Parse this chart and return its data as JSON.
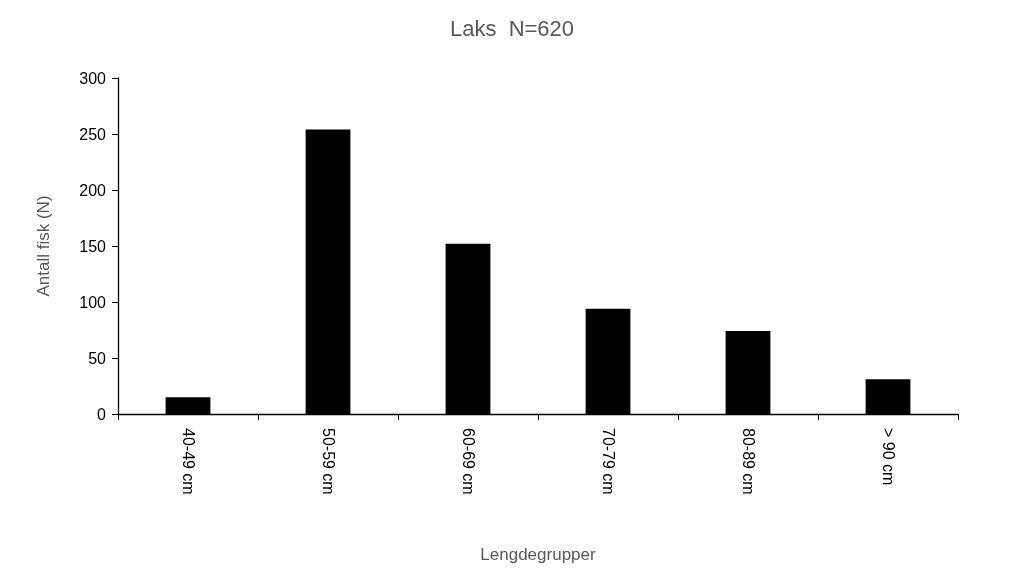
{
  "chart_data": {
    "type": "bar",
    "title": "Laks  N=620",
    "xlabel": "Lengdegrupper",
    "ylabel": "Antall fisk (N)",
    "categories": [
      "40-49 cm",
      "50-59 cm",
      "60-69 cm",
      "70-79 cm",
      "80-89 cm",
      "> 90 cm"
    ],
    "values": [
      15,
      254,
      152,
      94,
      74,
      31
    ],
    "color": "#000000",
    "ylim": [
      0,
      300
    ],
    "yticks": [
      0,
      50,
      100,
      150,
      200,
      250,
      300
    ]
  }
}
